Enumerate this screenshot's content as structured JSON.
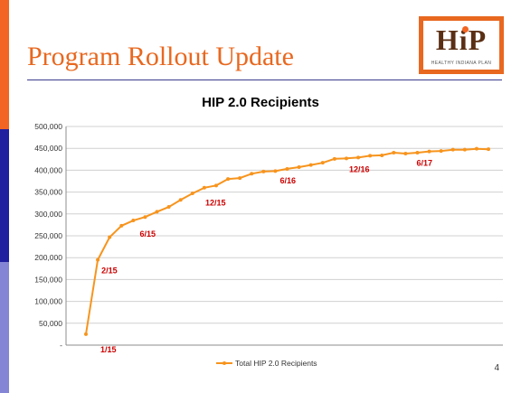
{
  "slide": {
    "title": "Program Rollout Update",
    "page_number": "4",
    "logo_text": "HiP",
    "logo_subtext": "HEALTHY INDIANA PLAN",
    "colors": {
      "accent_orange": "#F26522",
      "title_orange": "#E8681F",
      "navy": "#1F1FA0",
      "lavender": "#8585D6",
      "series": "#F7941D",
      "annotation": "#CC0000"
    }
  },
  "chart_data": {
    "type": "line",
    "title": "HIP 2.0 Recipients",
    "xlabel": "",
    "ylabel": "",
    "ylim": [
      0,
      500000
    ],
    "y_ticks": [
      "-",
      "50,000",
      "100,000",
      "150,000",
      "200,000",
      "250,000",
      "300,000",
      "350,000",
      "400,000",
      "450,000",
      "500,000"
    ],
    "grid": true,
    "legend": "bottom",
    "series": [
      {
        "name": "Total HIP 2.0 Recipients",
        "values": [
          25000,
          195000,
          247000,
          273000,
          285000,
          293000,
          305000,
          316000,
          332000,
          347000,
          360000,
          365000,
          380000,
          382000,
          392000,
          397000,
          398000,
          403000,
          407000,
          412000,
          417000,
          426000,
          427000,
          429000,
          433000,
          434000,
          440000,
          438000,
          440000,
          443000,
          444000,
          447000,
          447000,
          449000,
          448000
        ]
      }
    ],
    "annotations": [
      {
        "label": "1/15",
        "index": 0
      },
      {
        "label": "2/15",
        "index": 1
      },
      {
        "label": "6/15",
        "index": 5
      },
      {
        "label": "12/15",
        "index": 11
      },
      {
        "label": "6/16",
        "index": 17
      },
      {
        "label": "12/16",
        "index": 23
      },
      {
        "label": "6/17",
        "index": 29
      }
    ]
  }
}
